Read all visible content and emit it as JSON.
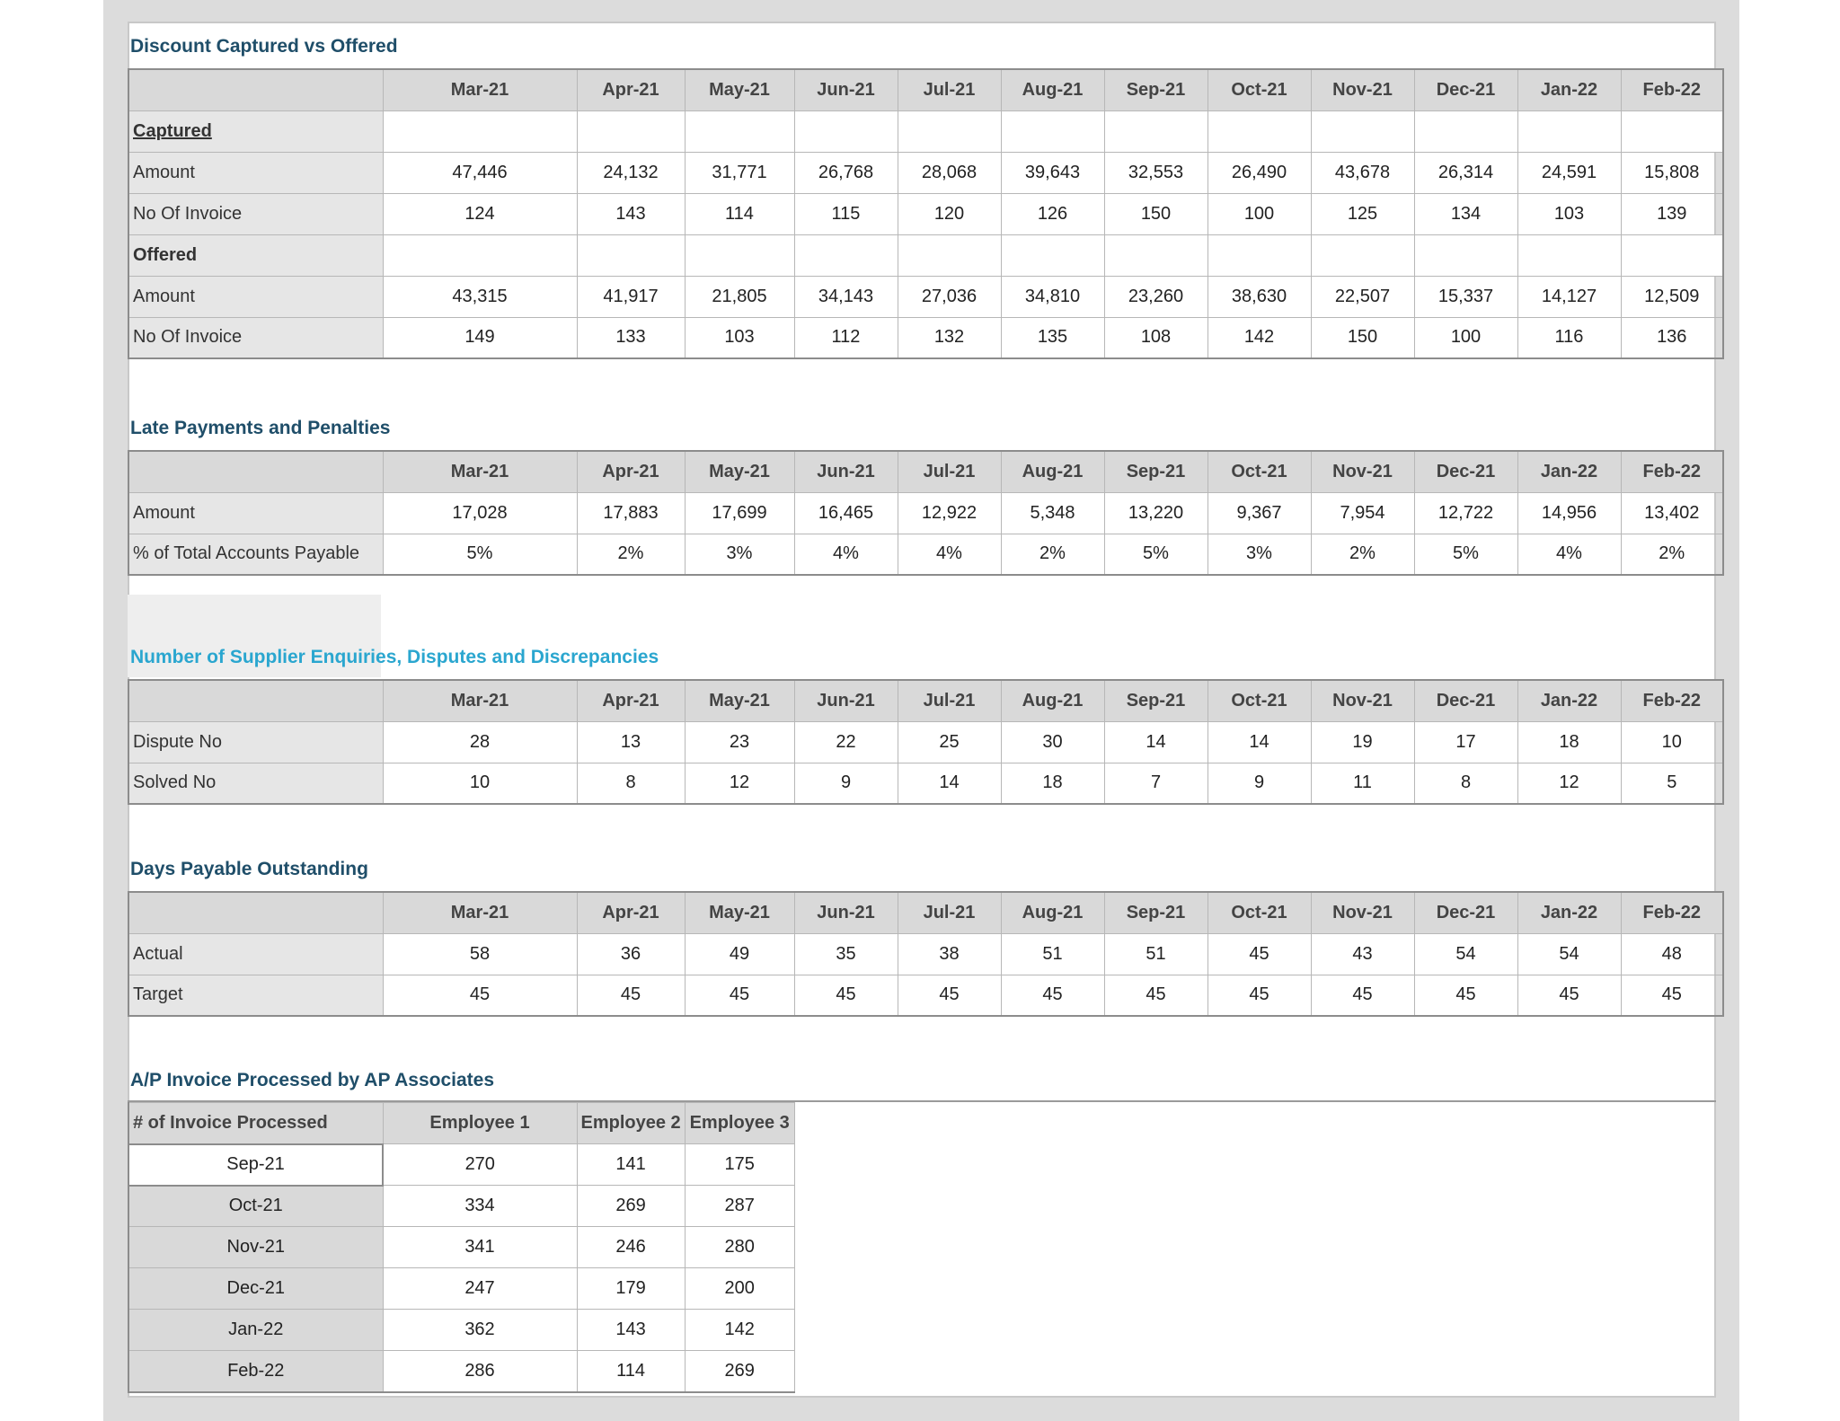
{
  "months": [
    "Mar-21",
    "Apr-21",
    "May-21",
    "Jun-21",
    "Jul-21",
    "Aug-21",
    "Sep-21",
    "Oct-21",
    "Nov-21",
    "Dec-21",
    "Jan-22",
    "Feb-22"
  ],
  "discount": {
    "title": "Discount Captured vs Offered",
    "captured_label": "Captured",
    "offered_label": "Offered",
    "captured_amount_label": "Amount",
    "captured_invoice_label": "No Of Invoice",
    "offered_amount_label": "Amount",
    "offered_invoice_label": "No Of Invoice",
    "captured_amount": [
      "47,446",
      "24,132",
      "31,771",
      "26,768",
      "28,068",
      "39,643",
      "32,553",
      "26,490",
      "43,678",
      "26,314",
      "24,591",
      "15,808"
    ],
    "captured_invoices": [
      "124",
      "143",
      "114",
      "115",
      "120",
      "126",
      "150",
      "100",
      "125",
      "134",
      "103",
      "139"
    ],
    "offered_amount": [
      "43,315",
      "41,917",
      "21,805",
      "34,143",
      "27,036",
      "34,810",
      "23,260",
      "38,630",
      "22,507",
      "15,337",
      "14,127",
      "12,509"
    ],
    "offered_invoices": [
      "149",
      "133",
      "103",
      "112",
      "132",
      "135",
      "108",
      "142",
      "150",
      "100",
      "116",
      "136"
    ]
  },
  "late": {
    "title": "Late Payments and Penalties",
    "amount_label": "Amount",
    "pct_label": "% of Total Accounts Payable",
    "amount": [
      "17,028",
      "17,883",
      "17,699",
      "16,465",
      "12,922",
      "5,348",
      "13,220",
      "9,367",
      "7,954",
      "12,722",
      "14,956",
      "13,402"
    ],
    "pct": [
      "5%",
      "2%",
      "3%",
      "4%",
      "4%",
      "2%",
      "5%",
      "3%",
      "2%",
      "5%",
      "4%",
      "2%"
    ]
  },
  "disputes": {
    "title": "Number of Supplier Enquiries, Disputes and Discrepancies",
    "dispute_label": "Dispute No",
    "solved_label": "Solved No",
    "dispute": [
      "28",
      "13",
      "23",
      "22",
      "25",
      "30",
      "14",
      "14",
      "19",
      "17",
      "18",
      "10"
    ],
    "solved": [
      "10",
      "8",
      "12",
      "9",
      "14",
      "18",
      "7",
      "9",
      "11",
      "8",
      "12",
      "5"
    ]
  },
  "dpo": {
    "title": "Days Payable Outstanding",
    "actual_label": "Actual",
    "target_label": "Target",
    "actual": [
      "58",
      "36",
      "49",
      "35",
      "38",
      "51",
      "51",
      "45",
      "43",
      "54",
      "54",
      "48"
    ],
    "target": [
      "45",
      "45",
      "45",
      "45",
      "45",
      "45",
      "45",
      "45",
      "45",
      "45",
      "45",
      "45"
    ]
  },
  "invoices": {
    "title": "A/P Invoice Processed by AP Associates",
    "corner_label": "# of Invoice Processed",
    "employees": [
      "Employee 1",
      "Employee 2",
      "Employee 3"
    ],
    "rows": [
      {
        "month": "Sep-21",
        "values": [
          "270",
          "141",
          "175"
        ]
      },
      {
        "month": "Oct-21",
        "values": [
          "334",
          "269",
          "287"
        ]
      },
      {
        "month": "Nov-21",
        "values": [
          "341",
          "246",
          "280"
        ]
      },
      {
        "month": "Dec-21",
        "values": [
          "247",
          "179",
          "200"
        ]
      },
      {
        "month": "Jan-22",
        "values": [
          "362",
          "143",
          "142"
        ]
      },
      {
        "month": "Feb-22",
        "values": [
          "286",
          "114",
          "269"
        ]
      }
    ]
  }
}
